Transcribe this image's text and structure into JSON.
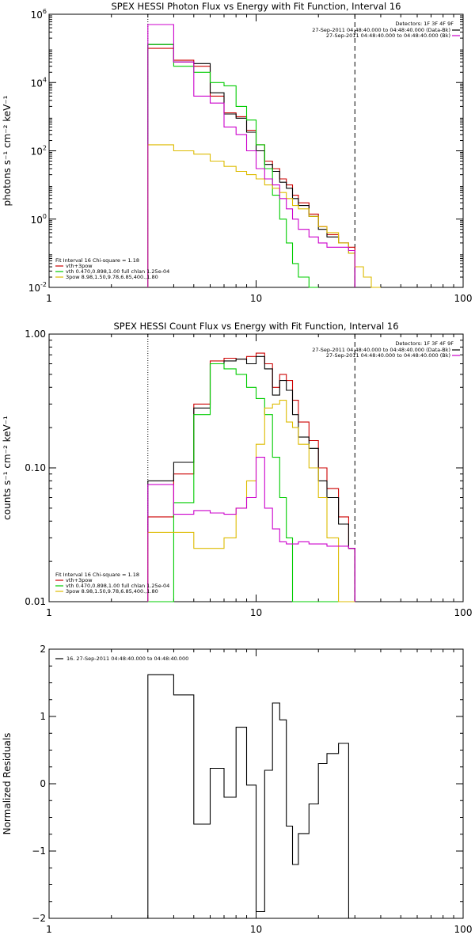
{
  "chart_data": [
    {
      "type": "line",
      "title": "SPEX HESSI Photon Flux vs Energy with Fit Function, Interval 16",
      "ylabel": "photons s⁻¹ cm⁻² keV⁻¹",
      "xscale": "log",
      "yscale": "log",
      "xlim": [
        1,
        100
      ],
      "ylim": [
        0.01,
        1000000
      ],
      "xticks": [
        {
          "v": 1,
          "label": "1"
        },
        {
          "v": 10,
          "label": "10"
        },
        {
          "v": 100,
          "label": "100"
        }
      ],
      "yticks": [
        {
          "v": 0.01,
          "base": "10",
          "exp": "-2"
        },
        {
          "v": 1,
          "base": "10",
          "exp": "0"
        },
        {
          "v": 100,
          "base": "10",
          "exp": "2"
        },
        {
          "v": 10000,
          "base": "10",
          "exp": "4"
        },
        {
          "v": 1000000,
          "base": "10",
          "exp": "6"
        }
      ],
      "vlines": [
        {
          "x": 3,
          "style": "dotted"
        },
        {
          "x": 30,
          "style": "dashed"
        }
      ],
      "legend_right": {
        "title": "Detectors: 1F 3F 4F 9F",
        "entries": [
          {
            "text": "27-Sep-2011 04:48:40.000 to 04:48:40.000 (Data-Bk)",
            "color": "#000000"
          },
          {
            "text": "27-Sep-2011 04:48:40.000 to 04:48:40.000 (Bk)",
            "color": "#cc00cc"
          }
        ]
      },
      "legend_left": {
        "title": "Fit Interval 16   Chi-square = 1.18",
        "entries": [
          {
            "text": "vth+3pow",
            "color": "#cc0000"
          },
          {
            "text": "vth 0.470,0.898,1.00  full chlan 1.25e-04",
            "color": "#00cc00"
          },
          {
            "text": "3pow 8.98,1.50,9.78,6.85,400.,1.80",
            "color": "#ddbb00"
          }
        ]
      },
      "edges": [
        3,
        4,
        5,
        6,
        7,
        8,
        9,
        10,
        11,
        12,
        13,
        14,
        15,
        16,
        18,
        20,
        22,
        25,
        28,
        30,
        33,
        36,
        40
      ],
      "series": [
        {
          "name": "vth+3pow",
          "color": "#cc0000",
          "values": [
            100000,
            45000,
            30000,
            4000,
            1300,
            1000,
            400,
            150,
            50,
            30,
            15,
            10,
            5,
            3,
            1.4,
            0.6,
            0.35,
            0.2,
            0.15,
            null,
            null,
            null
          ]
        },
        {
          "name": "Data-Bk",
          "color": "#000000",
          "values": [
            130000,
            40000,
            36000,
            5000,
            1200,
            900,
            350,
            100,
            40,
            25,
            12,
            8,
            4,
            2.5,
            1.2,
            0.5,
            0.3,
            0.2,
            0.1,
            null,
            null,
            null
          ]
        },
        {
          "name": "vth",
          "color": "#00cc00",
          "values": [
            130000,
            30000,
            20000,
            10000,
            8000,
            2000,
            800,
            150,
            30,
            5,
            1,
            0.2,
            0.05,
            0.02,
            0.01,
            null,
            null,
            null,
            null,
            null,
            null,
            null
          ]
        },
        {
          "name": "3pow",
          "color": "#ddbb00",
          "values": [
            150,
            100,
            80,
            50,
            35,
            25,
            20,
            15,
            10,
            8,
            6,
            4,
            2.5,
            2,
            1.2,
            0.6,
            0.4,
            0.2,
            0.1,
            0.04,
            0.02,
            0.01
          ]
        },
        {
          "name": "Bk",
          "color": "#cc00cc",
          "values": [
            500000,
            40000,
            4000,
            2500,
            500,
            300,
            100,
            30,
            15,
            10,
            4,
            2,
            1,
            0.5,
            0.3,
            0.2,
            0.15,
            0.15,
            0.12,
            null,
            null,
            null
          ]
        }
      ]
    },
    {
      "type": "line",
      "title": "SPEX HESSI Count Flux vs Energy with Fit Function, Interval 16",
      "ylabel": "counts s⁻¹ cm⁻² keV⁻¹",
      "xscale": "log",
      "yscale": "log",
      "xlim": [
        1,
        100
      ],
      "ylim": [
        0.01,
        1.0
      ],
      "xticks": [
        {
          "v": 1,
          "label": "1"
        },
        {
          "v": 10,
          "label": "10"
        },
        {
          "v": 100,
          "label": "100"
        }
      ],
      "yticks": [
        {
          "v": 0.01,
          "label": "0.01"
        },
        {
          "v": 0.1,
          "label": "0.10"
        },
        {
          "v": 1.0,
          "label": "1.00"
        }
      ],
      "vlines": [
        {
          "x": 3,
          "style": "dotted"
        },
        {
          "x": 30,
          "style": "dashed"
        }
      ],
      "legend_right": {
        "title": "Detectors: 1F 3F 4F 9F",
        "entries": [
          {
            "text": "27-Sep-2011 04:48:40.000 to 04:48:40.000 (Data-Bk)",
            "color": "#000000"
          },
          {
            "text": "27-Sep-2011 04:48:40.000 to 04:48:40.000 (Bk)",
            "color": "#cc00cc"
          }
        ]
      },
      "legend_left": {
        "title": "Fit Interval 16   Chi-square = 1.18",
        "entries": [
          {
            "text": "vth+3pow",
            "color": "#cc0000"
          },
          {
            "text": "vth 0.470,0.898,1.00  full chlan 1.25e-04",
            "color": "#00cc00"
          },
          {
            "text": "3pow 8.98,1.50,9.78,6.85,400.,1.80",
            "color": "#ddbb00"
          }
        ]
      },
      "edges": [
        3,
        4,
        5,
        6,
        7,
        8,
        9,
        10,
        11,
        12,
        13,
        14,
        15,
        16,
        18,
        20,
        22,
        25,
        28,
        30
      ],
      "series": [
        {
          "name": "vth+3pow",
          "color": "#cc0000",
          "values": [
            0.043,
            0.09,
            0.3,
            0.63,
            0.66,
            0.65,
            0.68,
            0.72,
            0.6,
            0.4,
            0.5,
            0.45,
            0.32,
            0.22,
            0.16,
            0.1,
            0.07,
            0.043,
            0.025
          ]
        },
        {
          "name": "Data-Bk",
          "color": "#000000",
          "values": [
            0.08,
            0.11,
            0.28,
            0.6,
            0.63,
            0.65,
            0.6,
            0.68,
            0.55,
            0.35,
            0.45,
            0.38,
            0.25,
            0.17,
            0.14,
            0.08,
            0.06,
            0.038,
            0.025
          ]
        },
        {
          "name": "vth",
          "color": "#00cc00",
          "values": [
            0.01,
            0.055,
            0.25,
            0.6,
            0.55,
            0.5,
            0.4,
            0.33,
            0.25,
            0.12,
            0.06,
            0.03,
            0.01,
            0.01,
            0.01,
            0.01,
            0.01,
            0.01,
            0.01
          ]
        },
        {
          "name": "3pow",
          "color": "#ddbb00",
          "values": [
            0.033,
            0.033,
            0.025,
            0.025,
            0.03,
            0.05,
            0.08,
            0.15,
            0.28,
            0.3,
            0.32,
            0.22,
            0.2,
            0.15,
            0.1,
            0.06,
            0.03,
            0.01,
            0.01
          ]
        },
        {
          "name": "Bk",
          "color": "#cc00cc",
          "values": [
            0.075,
            0.045,
            0.048,
            0.046,
            0.045,
            0.05,
            0.06,
            0.12,
            0.05,
            0.035,
            0.028,
            0.027,
            0.027,
            0.028,
            0.027,
            0.027,
            0.026,
            0.026,
            0.025
          ]
        }
      ]
    },
    {
      "type": "line",
      "title": "",
      "ylabel": "Normalized Residuals",
      "xscale": "log",
      "yscale": "linear",
      "xlim": [
        1,
        100
      ],
      "ylim": [
        -2,
        2
      ],
      "xticks": [
        {
          "v": 1,
          "label": "1"
        },
        {
          "v": 10,
          "label": "10"
        },
        {
          "v": 100,
          "label": "100"
        }
      ],
      "yticks": [
        {
          "v": -2,
          "label": "−2"
        },
        {
          "v": -1,
          "label": "−1"
        },
        {
          "v": 0,
          "label": "0"
        },
        {
          "v": 1,
          "label": "1"
        },
        {
          "v": 2,
          "label": "2"
        }
      ],
      "vlines": [],
      "legend_inset": {
        "text": "16. 27-Sep-2011 04:48:40.000 to 04:48:40.000",
        "color": "#000000"
      },
      "edges": [
        3,
        4,
        5,
        6,
        7,
        8,
        9,
        10,
        11,
        12,
        13,
        14,
        15,
        16,
        18,
        20,
        22,
        25,
        28,
        30
      ],
      "series": [
        {
          "name": "",
          "color": "#000000",
          "values": [
            1.62,
            1.32,
            -0.6,
            0.23,
            -0.2,
            0.84,
            -0.02,
            -1.9,
            0.2,
            1.2,
            0.95,
            -0.63,
            -1.2,
            -0.74,
            -0.3,
            0.3,
            0.45,
            0.6,
            null
          ]
        }
      ]
    }
  ]
}
